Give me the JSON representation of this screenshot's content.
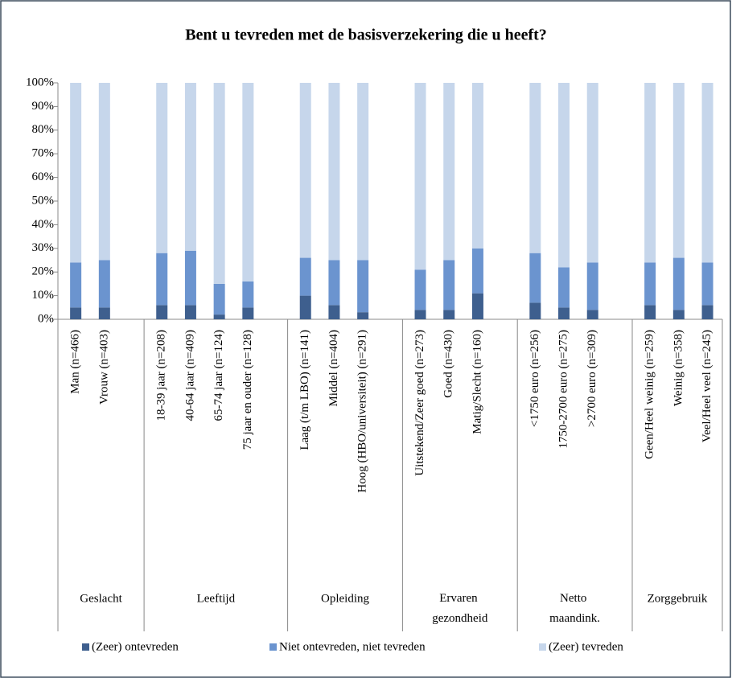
{
  "chart_data": {
    "type": "stacked_bar",
    "title": "Bent u tevreden met de basisverzekering die u heeft?",
    "groups": [
      {
        "name": "Geslacht",
        "categories": [
          "Man (n=466)",
          "Vrouw (n=403)"
        ]
      },
      {
        "name": "Leeftijd",
        "categories": [
          "18-39 jaar (n=208)",
          "40-64 jaar (n=409)",
          "65-74 jaar (n=124)",
          "75 jaar en ouder (n=128)"
        ]
      },
      {
        "name": "Opleiding",
        "categories": [
          "Laag (t/m LBO) (n=141)",
          "Middel (n=404)",
          "Hoog (HBO/universiteit) (n=291)"
        ]
      },
      {
        "name": "Ervaren gezondheid",
        "categories": [
          "Uitstekend/Zeer goed (n=273)",
          "Goed (n=430)",
          "Matig/Slecht (n=160)"
        ]
      },
      {
        "name": "Netto maandink.",
        "categories": [
          "<1750 euro (n=256)",
          "1750-2700 euro (n=275)",
          ">2700 euro (n=309)"
        ]
      },
      {
        "name": "Zorggebruik",
        "categories": [
          "Geen/Heel weinig (n=259)",
          "Weinig (n=358)",
          "Veel/Heel veel (n=245)"
        ]
      }
    ],
    "series": [
      {
        "name": "(Zeer) ontevreden",
        "color": "#3e5f8e",
        "values": [
          5,
          5,
          6,
          6,
          2,
          5,
          10,
          6,
          3,
          4,
          4,
          11,
          7,
          5,
          4,
          6,
          4,
          6
        ]
      },
      {
        "name": "Niet ontevreden, niet tevreden",
        "color": "#6b94cf",
        "values": [
          19,
          20,
          22,
          23,
          13,
          11,
          16,
          19,
          22,
          17,
          21,
          19,
          21,
          17,
          20,
          18,
          22,
          18
        ]
      },
      {
        "name": "(Zeer) tevreden",
        "color": "#c6d6eb",
        "values": [
          76,
          75,
          72,
          71,
          85,
          84,
          74,
          75,
          75,
          79,
          75,
          70,
          72,
          78,
          76,
          76,
          74,
          76
        ]
      }
    ],
    "ylim": [
      0,
      100
    ],
    "yticks": [
      {
        "value": 0,
        "label": "0%"
      },
      {
        "value": 10,
        "label": "10%"
      },
      {
        "value": 20,
        "label": "20%"
      },
      {
        "value": 30,
        "label": "30%"
      },
      {
        "value": 40,
        "label": "40%"
      },
      {
        "value": 50,
        "label": "50%"
      },
      {
        "value": 60,
        "label": "60%"
      },
      {
        "value": 70,
        "label": "70%"
      },
      {
        "value": 80,
        "label": "80%"
      },
      {
        "value": 90,
        "label": "90%"
      },
      {
        "value": 100,
        "label": "100%"
      }
    ],
    "legend": "bottom"
  }
}
